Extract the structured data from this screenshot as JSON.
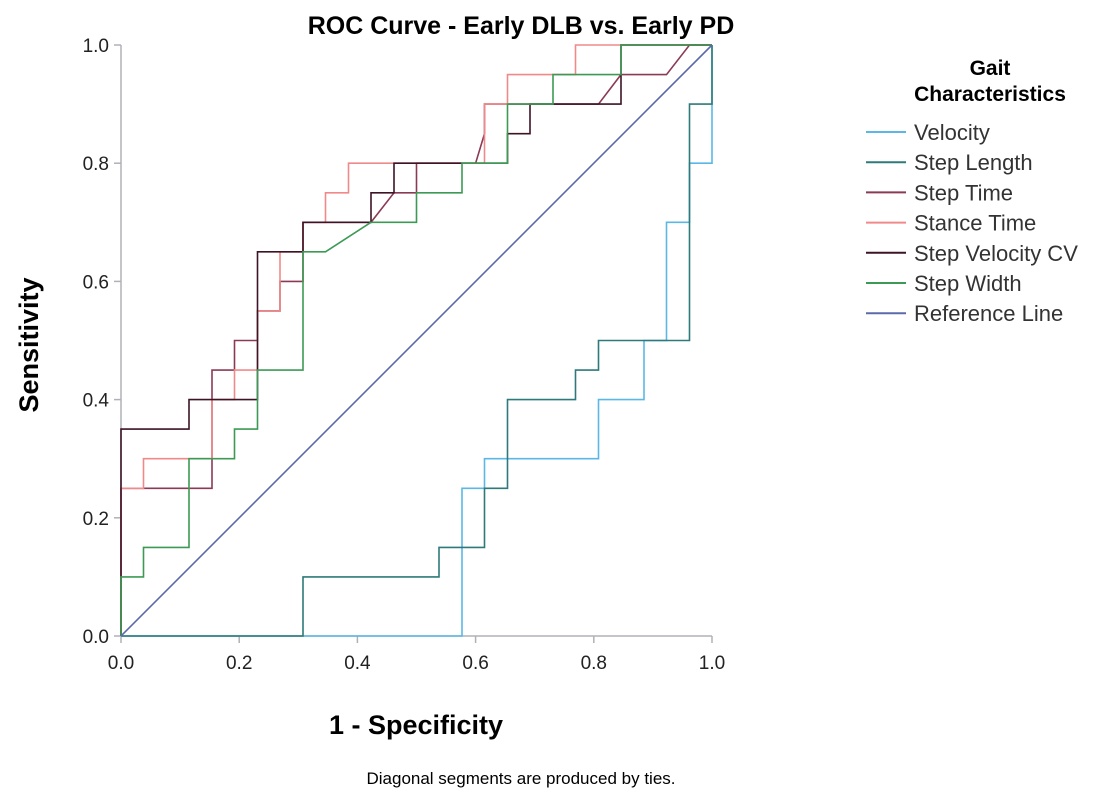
{
  "chart_data": {
    "type": "line",
    "title": "ROC Curve -  Early DLB vs. Early PD",
    "xlabel": "1 - Specificity",
    "ylabel": "Sensitivity",
    "xlim": [
      0,
      1
    ],
    "ylim": [
      0,
      1
    ],
    "x_ticks": [
      "0.0",
      "0.2",
      "0.4",
      "0.6",
      "0.8",
      "1.0"
    ],
    "y_ticks": [
      "0.0",
      "0.2",
      "0.4",
      "0.6",
      "0.8",
      "1.0"
    ],
    "grid": false,
    "legend_title": "Gait Characteristics",
    "legend_title_lines": [
      "Gait",
      "Characteristics"
    ],
    "legend_position": "right",
    "footnote": "Diagonal segments are produced by ties.",
    "series": [
      {
        "name": "Velocity",
        "color": "#5bb8e6",
        "points": [
          [
            0,
            0
          ],
          [
            0.577,
            0
          ],
          [
            0.577,
            0.25
          ],
          [
            0.615,
            0.25
          ],
          [
            0.615,
            0.3
          ],
          [
            0.808,
            0.3
          ],
          [
            0.808,
            0.4
          ],
          [
            0.885,
            0.4
          ],
          [
            0.885,
            0.5
          ],
          [
            0.923,
            0.5
          ],
          [
            0.923,
            0.7
          ],
          [
            0.962,
            0.7
          ],
          [
            0.962,
            0.8
          ],
          [
            1.0,
            0.8
          ],
          [
            1.0,
            1.0
          ]
        ]
      },
      {
        "name": "Step Length",
        "color": "#2e7a7a",
        "points": [
          [
            0,
            0
          ],
          [
            0.308,
            0
          ],
          [
            0.308,
            0.1
          ],
          [
            0.538,
            0.1
          ],
          [
            0.538,
            0.15
          ],
          [
            0.615,
            0.15
          ],
          [
            0.615,
            0.25
          ],
          [
            0.654,
            0.25
          ],
          [
            0.654,
            0.4
          ],
          [
            0.769,
            0.4
          ],
          [
            0.769,
            0.45
          ],
          [
            0.808,
            0.45
          ],
          [
            0.808,
            0.5
          ],
          [
            0.962,
            0.5
          ],
          [
            0.962,
            0.9
          ],
          [
            1.0,
            0.9
          ],
          [
            1.0,
            1.0
          ]
        ]
      },
      {
        "name": "Step Time",
        "color": "#8b3a55",
        "points": [
          [
            0,
            0
          ],
          [
            0,
            0.25
          ],
          [
            0.154,
            0.25
          ],
          [
            0.154,
            0.45
          ],
          [
            0.192,
            0.45
          ],
          [
            0.192,
            0.5
          ],
          [
            0.231,
            0.5
          ],
          [
            0.231,
            0.55
          ],
          [
            0.269,
            0.55
          ],
          [
            0.269,
            0.6
          ],
          [
            0.308,
            0.6
          ],
          [
            0.308,
            0.7
          ],
          [
            0.423,
            0.7
          ],
          [
            0.462,
            0.75
          ],
          [
            0.5,
            0.75
          ],
          [
            0.5,
            0.8
          ],
          [
            0.6,
            0.8
          ],
          [
            0.615,
            0.85
          ],
          [
            0.615,
            0.9
          ],
          [
            0.692,
            0.9
          ],
          [
            0.808,
            0.9
          ],
          [
            0.846,
            0.95
          ],
          [
            0.923,
            0.95
          ],
          [
            0.962,
            1.0
          ],
          [
            1.0,
            1.0
          ]
        ]
      },
      {
        "name": "Stance Time",
        "color": "#f08a8a",
        "points": [
          [
            0,
            0
          ],
          [
            0,
            0.25
          ],
          [
            0.038,
            0.25
          ],
          [
            0.038,
            0.3
          ],
          [
            0.154,
            0.3
          ],
          [
            0.154,
            0.4
          ],
          [
            0.192,
            0.4
          ],
          [
            0.192,
            0.45
          ],
          [
            0.231,
            0.45
          ],
          [
            0.231,
            0.55
          ],
          [
            0.269,
            0.55
          ],
          [
            0.269,
            0.65
          ],
          [
            0.308,
            0.65
          ],
          [
            0.308,
            0.7
          ],
          [
            0.346,
            0.7
          ],
          [
            0.346,
            0.75
          ],
          [
            0.385,
            0.75
          ],
          [
            0.385,
            0.8
          ],
          [
            0.615,
            0.8
          ],
          [
            0.615,
            0.9
          ],
          [
            0.654,
            0.9
          ],
          [
            0.654,
            0.95
          ],
          [
            0.769,
            0.95
          ],
          [
            0.769,
            1.0
          ],
          [
            1.0,
            1.0
          ]
        ]
      },
      {
        "name": "Step Velocity CV",
        "color": "#3d1426",
        "points": [
          [
            0,
            0
          ],
          [
            0,
            0.35
          ],
          [
            0.115,
            0.35
          ],
          [
            0.115,
            0.4
          ],
          [
            0.231,
            0.4
          ],
          [
            0.231,
            0.65
          ],
          [
            0.308,
            0.65
          ],
          [
            0.308,
            0.7
          ],
          [
            0.423,
            0.7
          ],
          [
            0.423,
            0.75
          ],
          [
            0.462,
            0.75
          ],
          [
            0.462,
            0.8
          ],
          [
            0.577,
            0.8
          ],
          [
            0.577,
            0.8
          ],
          [
            0.654,
            0.8
          ],
          [
            0.654,
            0.85
          ],
          [
            0.692,
            0.85
          ],
          [
            0.692,
            0.9
          ],
          [
            0.846,
            0.9
          ],
          [
            0.846,
            1.0
          ],
          [
            1.0,
            1.0
          ]
        ]
      },
      {
        "name": "Step Width",
        "color": "#3c9a55",
        "points": [
          [
            0,
            0
          ],
          [
            0,
            0.1
          ],
          [
            0.038,
            0.1
          ],
          [
            0.038,
            0.15
          ],
          [
            0.115,
            0.15
          ],
          [
            0.115,
            0.3
          ],
          [
            0.192,
            0.3
          ],
          [
            0.192,
            0.35
          ],
          [
            0.231,
            0.35
          ],
          [
            0.231,
            0.45
          ],
          [
            0.308,
            0.45
          ],
          [
            0.308,
            0.65
          ],
          [
            0.346,
            0.65
          ],
          [
            0.423,
            0.7
          ],
          [
            0.5,
            0.7
          ],
          [
            0.5,
            0.75
          ],
          [
            0.577,
            0.75
          ],
          [
            0.577,
            0.8
          ],
          [
            0.654,
            0.8
          ],
          [
            0.654,
            0.9
          ],
          [
            0.731,
            0.9
          ],
          [
            0.731,
            0.95
          ],
          [
            0.846,
            0.95
          ],
          [
            0.846,
            1.0
          ],
          [
            1.0,
            1.0
          ]
        ]
      },
      {
        "name": "Reference Line",
        "color": "#5a6aaa",
        "points": [
          [
            0,
            0
          ],
          [
            1,
            1
          ]
        ]
      }
    ]
  }
}
